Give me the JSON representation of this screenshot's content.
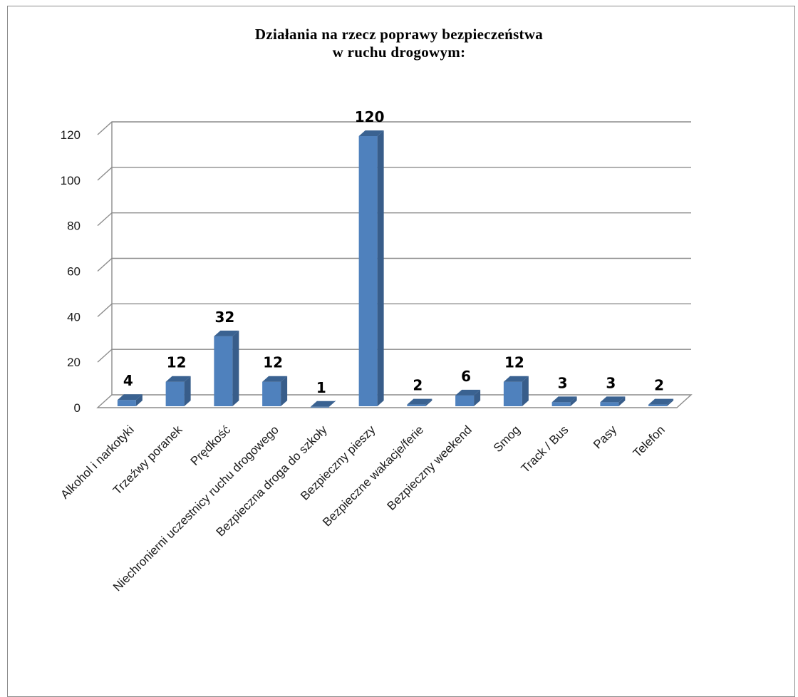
{
  "chart_data": {
    "type": "bar",
    "title": "Działania na rzecz poprawy bezpieczeństwa w ruchu drogowym:",
    "title_lines": [
      "Działania na rzecz poprawy bezpieczeństwa",
      "w ruchu drogowym:"
    ],
    "categories": [
      "Alkohol i narkotyki",
      "Trzeźwy poranek",
      "Prędkość",
      "Niechronierni uczestnicy ruchu drogowego",
      "Bezpieczna droga do szkoły",
      "Bezpieczny pieszy",
      "Bezpieczne wakacje/ferie",
      "Bezpieczny weekend",
      "Smog",
      "Track / Bus",
      "Pasy",
      "Telefon"
    ],
    "values": [
      4,
      12,
      32,
      12,
      1,
      120,
      2,
      6,
      12,
      3,
      3,
      2
    ],
    "data_labels": [
      "4",
      "12",
      "32",
      "12",
      "1",
      "120",
      "2",
      "6",
      "12",
      "3",
      "3",
      "2"
    ],
    "yticks": [
      "0",
      "20",
      "40",
      "60",
      "80",
      "100",
      "120"
    ],
    "ylim": [
      0,
      120
    ],
    "grid": true,
    "legend": false,
    "style": "3d-column",
    "bar_color": "#4f81bd",
    "bar_side_color": "#385d8a",
    "bar_top_color": "#3a6291",
    "grid_color": "#8c8c8c"
  }
}
